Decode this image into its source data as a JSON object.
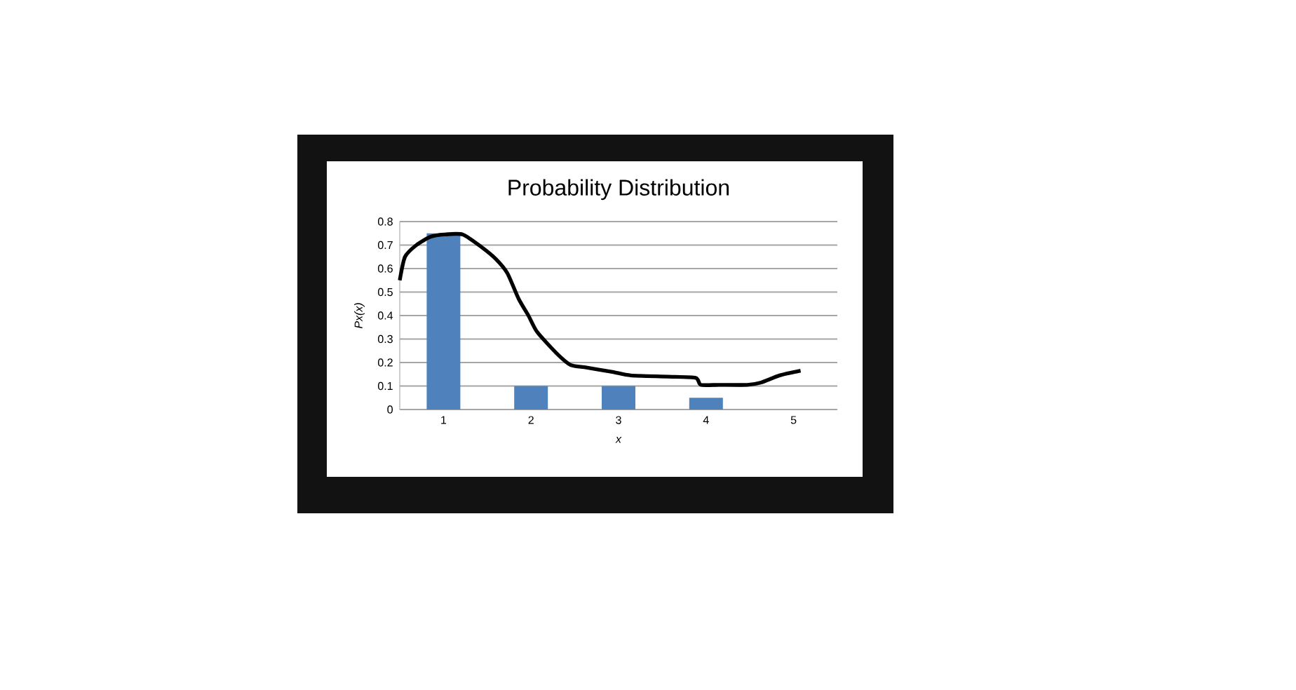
{
  "chart_data": {
    "type": "bar",
    "title": "Probability Distribution",
    "xlabel": "x",
    "ylabel": "Px(x)",
    "x": [
      1,
      2,
      3,
      4,
      5
    ],
    "xlim": [
      0.5,
      5.5
    ],
    "xticks": [
      1,
      2,
      3,
      4,
      5
    ],
    "ylim": [
      0,
      0.8
    ],
    "yticks": [
      0,
      0.1,
      0.2,
      0.3,
      0.4,
      0.5,
      0.6,
      0.7,
      0.8
    ],
    "grid": "y",
    "series": [
      {
        "color": "#4f81bd",
        "values": [
          0.75,
          0.1,
          0.1,
          0.05,
          0
        ]
      },
      {
        "type": "line",
        "color": "#000000",
        "x": [
          0.5,
          0.56,
          0.69,
          0.85,
          1.01,
          1.22,
          1.44,
          1.6,
          1.73,
          1.86,
          1.97,
          2.07,
          2.29,
          2.45,
          2.61,
          2.93,
          3.14,
          3.56,
          3.88,
          3.94,
          4.15,
          4.47,
          4.63,
          4.84,
          5.08
        ],
        "values": [
          0.55,
          0.65,
          0.7,
          0.735,
          0.745,
          0.745,
          0.69,
          0.64,
          0.58,
          0.47,
          0.4,
          0.33,
          0.24,
          0.19,
          0.18,
          0.16,
          0.145,
          0.14,
          0.135,
          0.105,
          0.105,
          0.105,
          0.115,
          0.145,
          0.165
        ]
      }
    ]
  }
}
